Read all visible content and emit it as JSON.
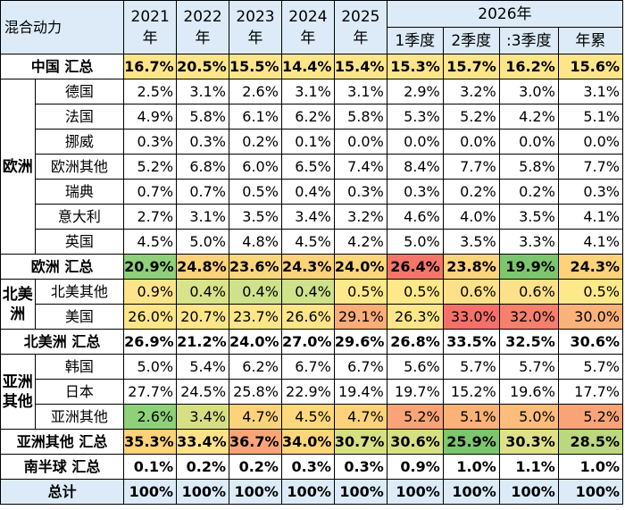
{
  "header": {
    "corner": "混合动力",
    "years": [
      "2021\n年",
      "2022\n年",
      "2023\n年",
      "2024\n年",
      "2025\n年"
    ],
    "year2026": "2026年",
    "sub_cols": [
      "1季度",
      "2季度",
      ":3季度",
      "年累"
    ]
  },
  "chart_data": {
    "type": "table",
    "columns": [
      "2021年",
      "2022年",
      "2023年",
      "2024年",
      "2025年",
      "2026年 1季度",
      "2026年 2季度",
      "2026年 :3季度",
      "2026年 年累"
    ],
    "rows": [
      {
        "kind": "total",
        "label": "中国 汇总",
        "values": [
          "16.7%",
          "20.5%",
          "15.5%",
          "14.4%",
          "15.4%",
          "15.3%",
          "15.7%",
          "16.2%",
          "15.6%"
        ],
        "colors": [
          "#fde68a",
          "#fde68a",
          "#fde68a",
          "#fde68a",
          "#fde68a",
          "#fde68a",
          "#fde68a",
          "#fde68a",
          "#fde68a"
        ]
      },
      {
        "kind": "group",
        "region": "欧洲",
        "rows": [
          {
            "label": "德国",
            "values": [
              "2.5%",
              "3.1%",
              "2.6%",
              "3.1%",
              "3.1%",
              "2.9%",
              "3.2%",
              "3.0%",
              "3.1%"
            ]
          },
          {
            "label": "法国",
            "values": [
              "4.9%",
              "5.8%",
              "6.1%",
              "6.2%",
              "5.8%",
              "5.3%",
              "5.2%",
              "4.2%",
              "5.1%"
            ]
          },
          {
            "label": "挪威",
            "values": [
              "0.3%",
              "0.3%",
              "0.2%",
              "0.1%",
              "0.0%",
              "0.0%",
              "0.0%",
              "0.0%",
              "0.0%"
            ]
          },
          {
            "label": "欧洲其他",
            "values": [
              "5.2%",
              "6.8%",
              "6.0%",
              "6.5%",
              "7.4%",
              "8.4%",
              "7.7%",
              "5.8%",
              "7.7%"
            ]
          },
          {
            "label": "瑞典",
            "values": [
              "0.7%",
              "0.7%",
              "0.5%",
              "0.4%",
              "0.3%",
              "0.3%",
              "0.2%",
              "0.2%",
              "0.3%"
            ]
          },
          {
            "label": "意大利",
            "values": [
              "2.7%",
              "3.1%",
              "3.5%",
              "3.4%",
              "3.2%",
              "4.6%",
              "4.0%",
              "3.5%",
              "4.1%"
            ]
          },
          {
            "label": "英国",
            "values": [
              "4.5%",
              "5.0%",
              "4.8%",
              "4.5%",
              "4.2%",
              "5.0%",
              "3.5%",
              "3.3%",
              "4.1%"
            ]
          }
        ]
      },
      {
        "kind": "total",
        "label": "欧洲 汇总",
        "values": [
          "20.9%",
          "24.8%",
          "23.6%",
          "24.3%",
          "24.0%",
          "26.4%",
          "23.8%",
          "19.9%",
          "24.3%"
        ],
        "colors": [
          "#8fd07a",
          "#fcd27a",
          "#fbd77c",
          "#fcd27a",
          "#fcd67c",
          "#f4766a",
          "#fcd47c",
          "#7cc76e",
          "#fcd27a"
        ]
      },
      {
        "kind": "group",
        "region": "北美洲",
        "rows": [
          {
            "label": "北美其他",
            "values": [
              "0.9%",
              "0.4%",
              "0.4%",
              "0.4%",
              "0.5%",
              "0.5%",
              "0.6%",
              "0.6%",
              "0.5%"
            ],
            "colors": [
              "#fde48a",
              "#d9e38a",
              "#cfe18a",
              "#cfe18a",
              "#fde88a",
              "#fde88a",
              "#fde08a",
              "#fde08a",
              "#fde88a"
            ]
          },
          {
            "label": "美国",
            "values": [
              "26.0%",
              "20.7%",
              "23.7%",
              "26.6%",
              "29.1%",
              "26.3%",
              "33.0%",
              "32.0%",
              "30.0%"
            ],
            "colors": [
              "#fde58a",
              "#fde58a",
              "#fde58a",
              "#fde58a",
              "#fbad78",
              "#fde58a",
              "#f4716a",
              "#f5806c",
              "#fbb27a"
            ]
          }
        ]
      },
      {
        "kind": "total",
        "label": "北美洲 汇总",
        "values": [
          "26.9%",
          "21.2%",
          "24.0%",
          "27.0%",
          "29.6%",
          "26.8%",
          "33.5%",
          "32.5%",
          "30.6%"
        ]
      },
      {
        "kind": "group",
        "region": "亚洲其他",
        "rows": [
          {
            "label": "韩国",
            "values": [
              "5.0%",
              "5.4%",
              "6.2%",
              "6.7%",
              "6.7%",
              "5.6%",
              "5.7%",
              "5.7%",
              "5.7%"
            ]
          },
          {
            "label": "日本",
            "values": [
              "27.7%",
              "24.5%",
              "25.8%",
              "22.9%",
              "19.4%",
              "19.7%",
              "15.2%",
              "19.6%",
              "17.7%"
            ]
          },
          {
            "label": "亚洲其他",
            "values": [
              "2.6%",
              "3.4%",
              "4.7%",
              "4.5%",
              "4.7%",
              "5.2%",
              "5.1%",
              "5.0%",
              "5.2%"
            ],
            "colors": [
              "#8fd07a",
              "#d6e083",
              "#fcd27a",
              "#fdd97c",
              "#fcd27a",
              "#f9a477",
              "#fab277",
              "#fbbd79",
              "#f9a477"
            ]
          }
        ]
      },
      {
        "kind": "total",
        "label": "亚洲其他 汇总",
        "values": [
          "35.3%",
          "33.4%",
          "36.7%",
          "34.0%",
          "30.7%",
          "30.6%",
          "25.9%",
          "30.3%",
          "28.5%"
        ],
        "colors": [
          "#fcd27a",
          "#fde28a",
          "#f9a477",
          "#fdd67c",
          "#d6e083",
          "#d6e083",
          "#7cc76e",
          "#dfe188",
          "#bcd87e"
        ]
      },
      {
        "kind": "total",
        "label": "南半球 汇总",
        "values": [
          "0.1%",
          "0.2%",
          "0.2%",
          "0.3%",
          "0.3%",
          "0.9%",
          "1.0%",
          "1.1%",
          "1.0%"
        ]
      },
      {
        "kind": "total",
        "label": "总计",
        "values": [
          "100%",
          "100%",
          "100%",
          "100%",
          "100%",
          "100%",
          "100%",
          "100%",
          "100%"
        ],
        "rowColor": "#dcebf7"
      }
    ]
  }
}
